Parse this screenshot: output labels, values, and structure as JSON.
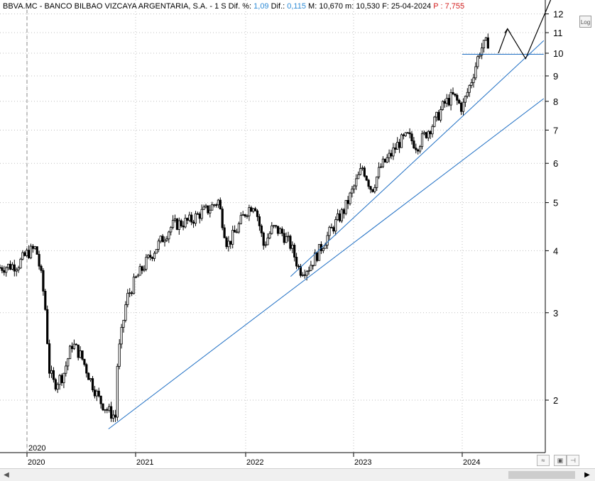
{
  "header": {
    "title": "BBVA.MC - BANCO BILBAO VIZCAYA ARGENTARIA, S.A. - 1 S",
    "dif_pct_label": "Dif. %:",
    "dif_pct_value": "1,09",
    "dif_label": "Dif.:",
    "dif_value": "0,115",
    "max_label": "M:",
    "max_value": "10,670",
    "min_label": "m:",
    "min_value": "10,530",
    "date_label": "F:",
    "date_value": "25-04-2024",
    "p_label": "P :",
    "p_value": "7,755"
  },
  "log_button": "Log",
  "colors": {
    "candle": "#000000",
    "trendline": "#1f6fc4",
    "grid": "#bfbfbf",
    "header_value": "#2e8bd6",
    "header_p": "#d42020"
  },
  "chart_data": {
    "type": "line",
    "scale": "log",
    "ylim": [
      1.65,
      12.5
    ],
    "y_ticks": [
      2,
      3,
      4,
      5,
      6,
      7,
      8,
      9,
      10,
      11,
      12
    ],
    "x_ticks": [
      "2020",
      "2021",
      "2022",
      "2023",
      "2024"
    ],
    "inner_year_label": "2020",
    "series": [
      {
        "kind": "weekly-close",
        "x": [
          "2019-10",
          "2019-12",
          "2020-01",
          "2020-02",
          "2020-02-20",
          "2020-03",
          "2020-03-15",
          "2020-04",
          "2020-05",
          "2020-06",
          "2020-07",
          "2020-08",
          "2020-09",
          "2020-10",
          "2020-10-25",
          "2020-11",
          "2020-12",
          "2021-01",
          "2021-02",
          "2021-03",
          "2021-04",
          "2021-05",
          "2021-06",
          "2021-07",
          "2021-08",
          "2021-09",
          "2021-10",
          "2021-11",
          "2021-12",
          "2022-01",
          "2022-02",
          "2022-03",
          "2022-04",
          "2022-05",
          "2022-06",
          "2022-07",
          "2022-08",
          "2022-09",
          "2022-10",
          "2022-11",
          "2022-12",
          "2023-01",
          "2023-02",
          "2023-03",
          "2023-04",
          "2023-05",
          "2023-06",
          "2023-07",
          "2023-08",
          "2023-09",
          "2023-10",
          "2023-11",
          "2023-12",
          "2024-01",
          "2024-02",
          "2024-03",
          "2024-04"
        ],
        "values": [
          3.7,
          3.75,
          3.95,
          4.05,
          3.5,
          3.1,
          2.3,
          2.15,
          2.25,
          2.6,
          2.45,
          2.2,
          2.0,
          1.9,
          1.85,
          2.4,
          3.2,
          3.5,
          3.75,
          4.0,
          4.25,
          4.5,
          4.55,
          4.6,
          4.75,
          4.85,
          5.05,
          4.1,
          4.4,
          4.8,
          5.0,
          4.1,
          4.45,
          4.35,
          4.1,
          3.65,
          3.7,
          3.95,
          4.25,
          4.55,
          4.85,
          5.35,
          5.9,
          5.3,
          5.9,
          6.2,
          6.6,
          6.8,
          6.5,
          6.9,
          7.3,
          7.9,
          8.2,
          7.75,
          8.8,
          10.2,
          10.6
        ]
      },
      {
        "kind": "trendline",
        "x": [
          "2020-10",
          "2024-10"
        ],
        "values": [
          1.75,
          8.1
        ]
      },
      {
        "kind": "trendline",
        "x": [
          "2022-06",
          "2024-10"
        ],
        "values": [
          3.55,
          10.6
        ]
      },
      {
        "kind": "resistance",
        "x": [
          "2024-01",
          "2024-10"
        ],
        "values": [
          9.95,
          9.95
        ]
      },
      {
        "kind": "projection",
        "x": [
          "2024-05",
          "2024-06",
          "2024-08",
          "2024-11"
        ],
        "values": [
          10.0,
          11.2,
          9.75,
          13.1
        ]
      }
    ]
  }
}
